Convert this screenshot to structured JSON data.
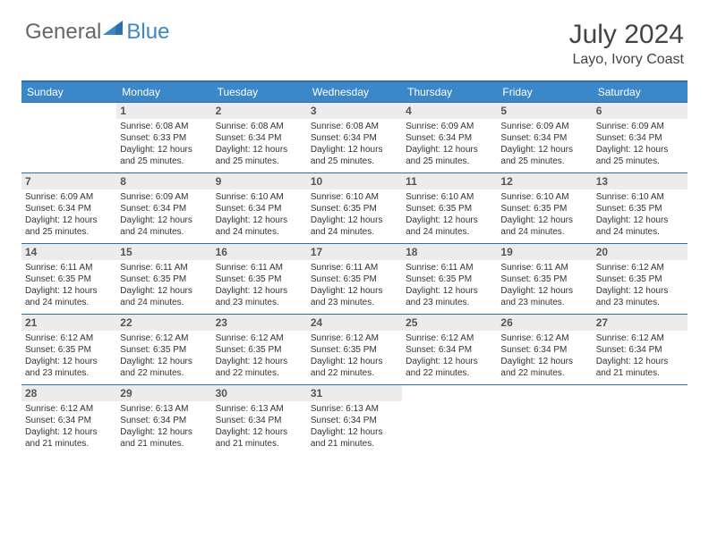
{
  "brand": {
    "part1": "General",
    "part2": "Blue"
  },
  "title": "July 2024",
  "location": "Layo, Ivory Coast",
  "colors": {
    "header_bg": "#3b87c8",
    "header_border": "#2f6fa8",
    "daynum_bg": "#ececec",
    "text": "#333333",
    "page_bg": "#ffffff"
  },
  "weekdays": [
    "Sunday",
    "Monday",
    "Tuesday",
    "Wednesday",
    "Thursday",
    "Friday",
    "Saturday"
  ],
  "weeks": [
    [
      {
        "day": "",
        "lines": []
      },
      {
        "day": "1",
        "lines": [
          "Sunrise: 6:08 AM",
          "Sunset: 6:33 PM",
          "Daylight: 12 hours",
          "and 25 minutes."
        ]
      },
      {
        "day": "2",
        "lines": [
          "Sunrise: 6:08 AM",
          "Sunset: 6:34 PM",
          "Daylight: 12 hours",
          "and 25 minutes."
        ]
      },
      {
        "day": "3",
        "lines": [
          "Sunrise: 6:08 AM",
          "Sunset: 6:34 PM",
          "Daylight: 12 hours",
          "and 25 minutes."
        ]
      },
      {
        "day": "4",
        "lines": [
          "Sunrise: 6:09 AM",
          "Sunset: 6:34 PM",
          "Daylight: 12 hours",
          "and 25 minutes."
        ]
      },
      {
        "day": "5",
        "lines": [
          "Sunrise: 6:09 AM",
          "Sunset: 6:34 PM",
          "Daylight: 12 hours",
          "and 25 minutes."
        ]
      },
      {
        "day": "6",
        "lines": [
          "Sunrise: 6:09 AM",
          "Sunset: 6:34 PM",
          "Daylight: 12 hours",
          "and 25 minutes."
        ]
      }
    ],
    [
      {
        "day": "7",
        "lines": [
          "Sunrise: 6:09 AM",
          "Sunset: 6:34 PM",
          "Daylight: 12 hours",
          "and 25 minutes."
        ]
      },
      {
        "day": "8",
        "lines": [
          "Sunrise: 6:09 AM",
          "Sunset: 6:34 PM",
          "Daylight: 12 hours",
          "and 24 minutes."
        ]
      },
      {
        "day": "9",
        "lines": [
          "Sunrise: 6:10 AM",
          "Sunset: 6:34 PM",
          "Daylight: 12 hours",
          "and 24 minutes."
        ]
      },
      {
        "day": "10",
        "lines": [
          "Sunrise: 6:10 AM",
          "Sunset: 6:35 PM",
          "Daylight: 12 hours",
          "and 24 minutes."
        ]
      },
      {
        "day": "11",
        "lines": [
          "Sunrise: 6:10 AM",
          "Sunset: 6:35 PM",
          "Daylight: 12 hours",
          "and 24 minutes."
        ]
      },
      {
        "day": "12",
        "lines": [
          "Sunrise: 6:10 AM",
          "Sunset: 6:35 PM",
          "Daylight: 12 hours",
          "and 24 minutes."
        ]
      },
      {
        "day": "13",
        "lines": [
          "Sunrise: 6:10 AM",
          "Sunset: 6:35 PM",
          "Daylight: 12 hours",
          "and 24 minutes."
        ]
      }
    ],
    [
      {
        "day": "14",
        "lines": [
          "Sunrise: 6:11 AM",
          "Sunset: 6:35 PM",
          "Daylight: 12 hours",
          "and 24 minutes."
        ]
      },
      {
        "day": "15",
        "lines": [
          "Sunrise: 6:11 AM",
          "Sunset: 6:35 PM",
          "Daylight: 12 hours",
          "and 24 minutes."
        ]
      },
      {
        "day": "16",
        "lines": [
          "Sunrise: 6:11 AM",
          "Sunset: 6:35 PM",
          "Daylight: 12 hours",
          "and 23 minutes."
        ]
      },
      {
        "day": "17",
        "lines": [
          "Sunrise: 6:11 AM",
          "Sunset: 6:35 PM",
          "Daylight: 12 hours",
          "and 23 minutes."
        ]
      },
      {
        "day": "18",
        "lines": [
          "Sunrise: 6:11 AM",
          "Sunset: 6:35 PM",
          "Daylight: 12 hours",
          "and 23 minutes."
        ]
      },
      {
        "day": "19",
        "lines": [
          "Sunrise: 6:11 AM",
          "Sunset: 6:35 PM",
          "Daylight: 12 hours",
          "and 23 minutes."
        ]
      },
      {
        "day": "20",
        "lines": [
          "Sunrise: 6:12 AM",
          "Sunset: 6:35 PM",
          "Daylight: 12 hours",
          "and 23 minutes."
        ]
      }
    ],
    [
      {
        "day": "21",
        "lines": [
          "Sunrise: 6:12 AM",
          "Sunset: 6:35 PM",
          "Daylight: 12 hours",
          "and 23 minutes."
        ]
      },
      {
        "day": "22",
        "lines": [
          "Sunrise: 6:12 AM",
          "Sunset: 6:35 PM",
          "Daylight: 12 hours",
          "and 22 minutes."
        ]
      },
      {
        "day": "23",
        "lines": [
          "Sunrise: 6:12 AM",
          "Sunset: 6:35 PM",
          "Daylight: 12 hours",
          "and 22 minutes."
        ]
      },
      {
        "day": "24",
        "lines": [
          "Sunrise: 6:12 AM",
          "Sunset: 6:35 PM",
          "Daylight: 12 hours",
          "and 22 minutes."
        ]
      },
      {
        "day": "25",
        "lines": [
          "Sunrise: 6:12 AM",
          "Sunset: 6:34 PM",
          "Daylight: 12 hours",
          "and 22 minutes."
        ]
      },
      {
        "day": "26",
        "lines": [
          "Sunrise: 6:12 AM",
          "Sunset: 6:34 PM",
          "Daylight: 12 hours",
          "and 22 minutes."
        ]
      },
      {
        "day": "27",
        "lines": [
          "Sunrise: 6:12 AM",
          "Sunset: 6:34 PM",
          "Daylight: 12 hours",
          "and 21 minutes."
        ]
      }
    ],
    [
      {
        "day": "28",
        "lines": [
          "Sunrise: 6:12 AM",
          "Sunset: 6:34 PM",
          "Daylight: 12 hours",
          "and 21 minutes."
        ]
      },
      {
        "day": "29",
        "lines": [
          "Sunrise: 6:13 AM",
          "Sunset: 6:34 PM",
          "Daylight: 12 hours",
          "and 21 minutes."
        ]
      },
      {
        "day": "30",
        "lines": [
          "Sunrise: 6:13 AM",
          "Sunset: 6:34 PM",
          "Daylight: 12 hours",
          "and 21 minutes."
        ]
      },
      {
        "day": "31",
        "lines": [
          "Sunrise: 6:13 AM",
          "Sunset: 6:34 PM",
          "Daylight: 12 hours",
          "and 21 minutes."
        ]
      },
      {
        "day": "",
        "lines": []
      },
      {
        "day": "",
        "lines": []
      },
      {
        "day": "",
        "lines": []
      }
    ]
  ]
}
